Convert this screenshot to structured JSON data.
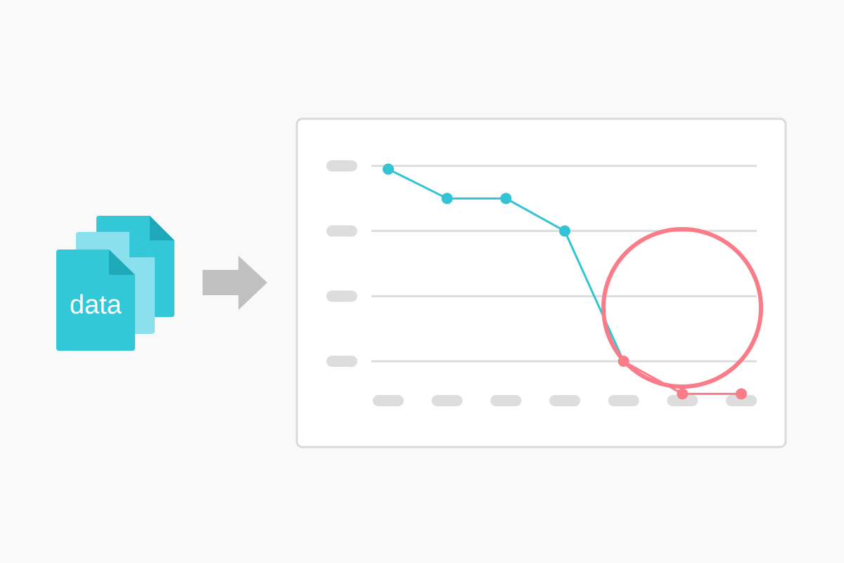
{
  "colors": {
    "background": "#f9f9f9",
    "doc_front": "#32c8d8",
    "doc_middle": "#8be0ee",
    "doc_back": "#32c8d8",
    "doc_fold": "#1fa9b8",
    "arrow": "#c0c0c0",
    "panel_border": "#dadada",
    "gridline": "#dcdcdc",
    "placeholder": "#dddddd",
    "series_normal": "#32c4d4",
    "series_anomaly": "#fa7c88",
    "highlight_ring": "#fa7c88"
  },
  "document_stack": {
    "label": "data",
    "icon": "stacked-documents-icon"
  },
  "arrow": {
    "icon": "right-arrow-icon"
  },
  "chart_data": {
    "type": "line",
    "title": "",
    "xlabel": "",
    "ylabel": "",
    "x": [
      1,
      2,
      3,
      4,
      5,
      6,
      7
    ],
    "values": [
      3.95,
      3.5,
      3.5,
      3.0,
      1.0,
      0.5,
      0.5
    ],
    "ylim": [
      0,
      4
    ],
    "yticks": [
      1,
      2,
      3,
      4
    ],
    "tick_labels_obscured": true,
    "grid": true,
    "anomaly_start_index": 4,
    "highlighted_region": "anomaly"
  }
}
